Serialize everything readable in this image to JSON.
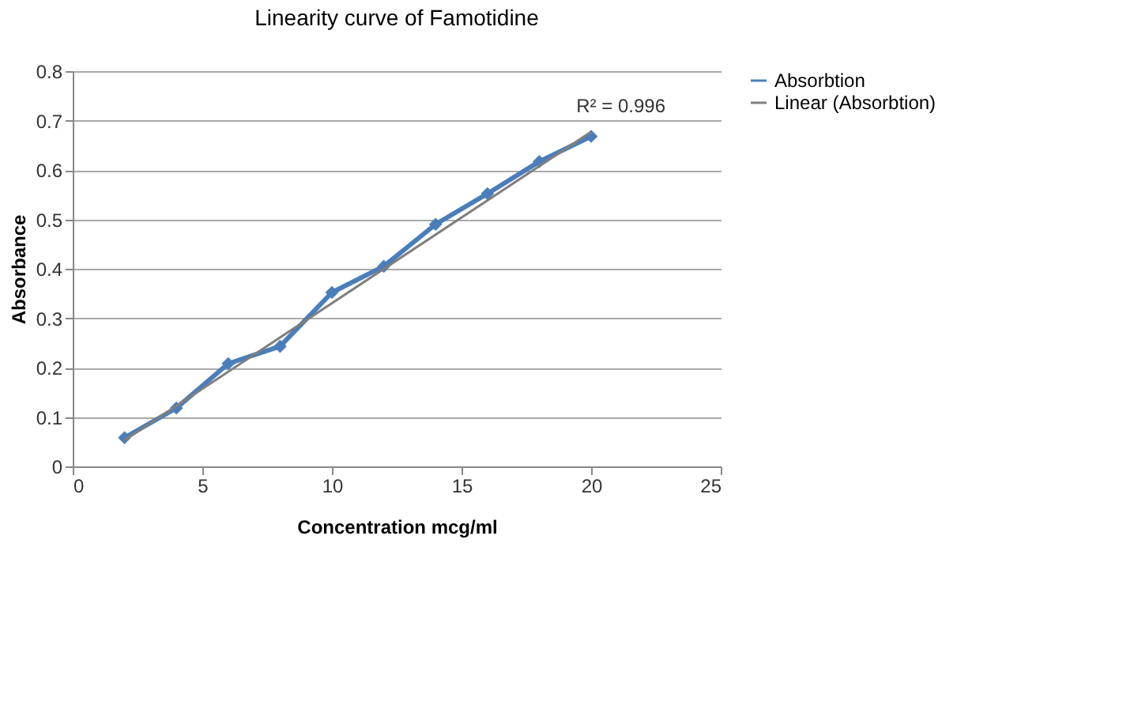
{
  "chart_data": {
    "type": "line",
    "title": "Linearity curve of Famotidine",
    "xlabel": "Concentration mcg/ml",
    "ylabel": "Absorbance",
    "x": [
      2,
      4,
      6,
      8,
      10,
      12,
      14,
      16,
      18,
      20
    ],
    "series": [
      {
        "name": "Absorbtion",
        "color": "#4a7ebb",
        "values": [
          0.058,
          0.118,
          0.208,
          0.243,
          0.352,
          0.405,
          0.49,
          0.552,
          0.617,
          0.668
        ],
        "marker": "diamond"
      },
      {
        "name": "Linear (Absorbtion)",
        "type": "line",
        "color": "#7f7f7f",
        "x": [
          2,
          20
        ],
        "values": [
          0.053,
          0.677
        ],
        "marker": "none"
      }
    ],
    "annotations": [
      "R² = 0.996"
    ],
    "xlim": [
      0,
      25
    ],
    "xticks": [
      0,
      5,
      10,
      15,
      20,
      25
    ],
    "ylim": [
      0,
      0.8
    ],
    "yticks": [
      0,
      0.1,
      0.2,
      0.3,
      0.4,
      0.5,
      0.6,
      0.7,
      0.8
    ],
    "grid": "y",
    "legend": "right"
  }
}
